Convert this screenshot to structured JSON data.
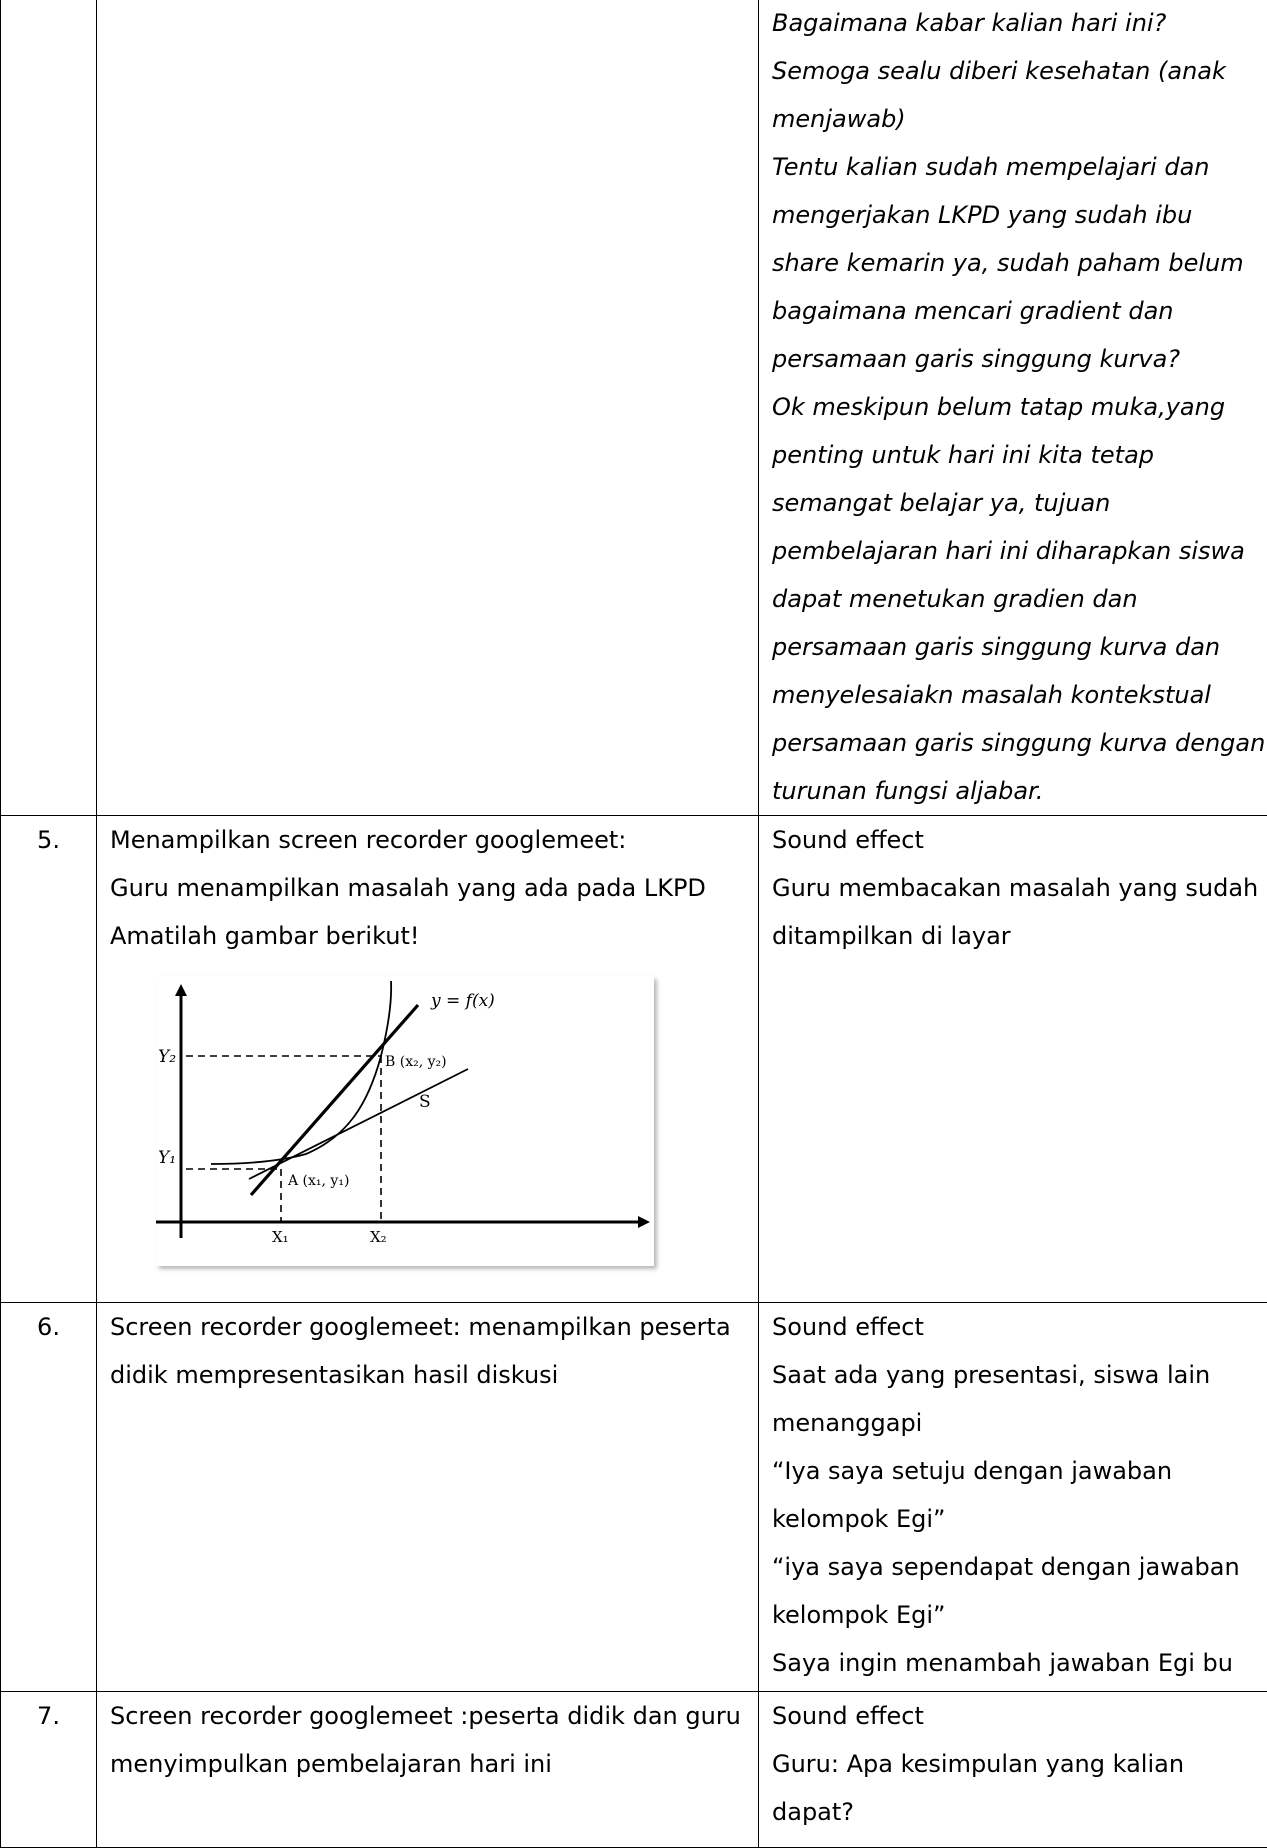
{
  "rows": [
    {
      "number": "",
      "visual": [],
      "audio": [
        "Bagaimana kabar kalian hari ini?",
        "Semoga sealu diberi kesehatan (anak",
        "menjawab)",
        "Tentu kalian sudah mempelajari dan",
        "mengerjakan LKPD yang sudah ibu",
        "share kemarin ya, sudah paham belum",
        "bagaimana mencari gradient dan",
        "persamaan garis singgung kurva?",
        "Ok meskipun belum tatap muka,yang",
        "penting untuk hari ini kita tetap",
        "semangat belajar ya, tujuan",
        "pembelajaran hari ini diharapkan siswa",
        "dapat menetukan gradien dan",
        "persamaan garis singgung kurva dan",
        "menyelesaiakn masalah kontekstual",
        "persamaan garis singgung kurva dengan",
        "turunan fungsi aljabar."
      ]
    },
    {
      "number": "5.",
      "visual": [
        "Menampilkan screen recorder googlemeet:",
        "Guru menampilkan masalah yang ada pada LKPD",
        "Amatilah gambar berikut!"
      ],
      "audio": [
        "Sound effect",
        "Guru membacakan masalah yang sudah",
        "ditampilkan di layar"
      ]
    },
    {
      "number": "6.",
      "visual": [
        "Screen recorder googlemeet: menampilkan peserta",
        "didik mempresentasikan hasil diskusi"
      ],
      "audio": [
        "Sound effect",
        "Saat ada yang presentasi, siswa lain",
        "menanggapi",
        "“Iya saya setuju dengan jawaban",
        "kelompok Egi”",
        "“iya saya sependapat dengan jawaban",
        "kelompok Egi”",
        "Saya ingin menambah jawaban Egi bu"
      ]
    },
    {
      "number": "7.",
      "visual": [
        "Screen recorder googlemeet :peserta didik dan guru",
        "menyimpulkan pembelajaran hari ini"
      ],
      "audio": [
        "Sound effect",
        "Guru: Apa kesimpulan yang kalian",
        "dapat?"
      ]
    }
  ],
  "figure": {
    "curve_label": "y = f(x)",
    "y2_label": "Y₂",
    "y1_label": "Y₁",
    "point_b_label": "B (x₂, y₂)",
    "point_a_label": "A (x₁, y₁)",
    "secant_label": "S",
    "x1_label": "X₁",
    "x2_label": "X₂"
  }
}
